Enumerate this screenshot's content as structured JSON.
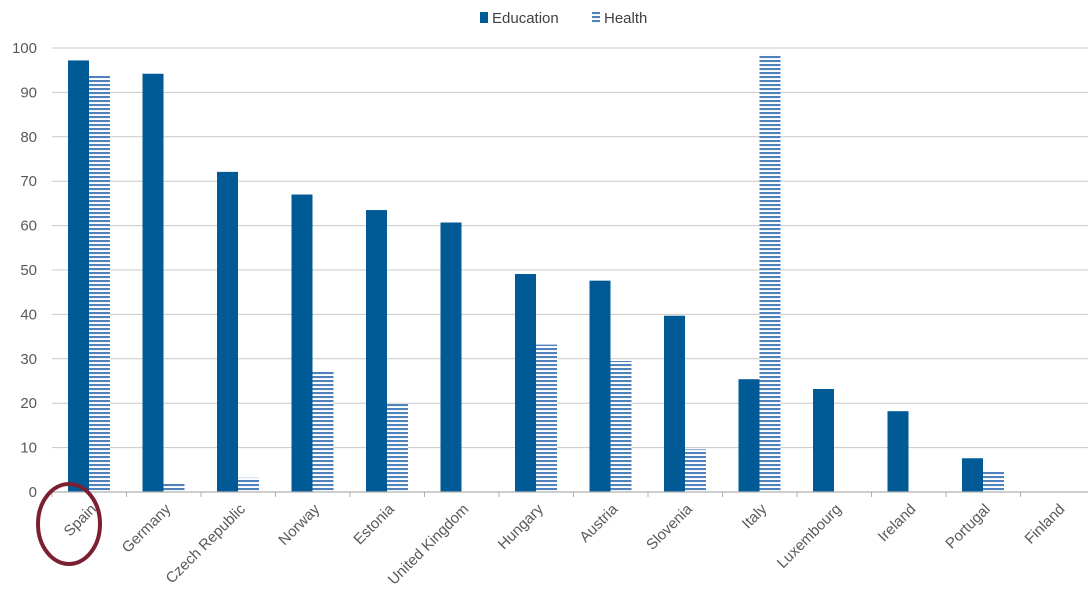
{
  "chart_data": {
    "type": "bar",
    "categories": [
      "Spain",
      "Germany",
      "Czech Republic",
      "Norway",
      "Estonia",
      "United Kingdom",
      "Hungary",
      "Austria",
      "Slovenia",
      "Italy",
      "Luxembourg",
      "Ireland",
      "Portugal",
      "Finland"
    ],
    "series": [
      {
        "name": "Education",
        "values": [
          97.2,
          94.2,
          72.1,
          67.0,
          63.5,
          60.7,
          49.1,
          47.6,
          39.7,
          25.4,
          23.2,
          18.2,
          7.6,
          0
        ],
        "color": "#005a96",
        "pattern": "solid"
      },
      {
        "name": "Health",
        "values": [
          93.8,
          2.1,
          3.2,
          27.1,
          19.9,
          0,
          33.2,
          29.5,
          9.6,
          98.6,
          0,
          0,
          4.5,
          0
        ],
        "color": "#4f81bd",
        "pattern": "horizontal-stripes"
      }
    ],
    "ylim": [
      0,
      100
    ],
    "yticks": [
      0,
      10,
      20,
      30,
      40,
      50,
      60,
      70,
      80,
      90,
      100
    ],
    "grid": true,
    "legend_position": "top-center",
    "highlight": {
      "category": "Spain",
      "shape": "circle",
      "color": "#7b1f32"
    }
  }
}
